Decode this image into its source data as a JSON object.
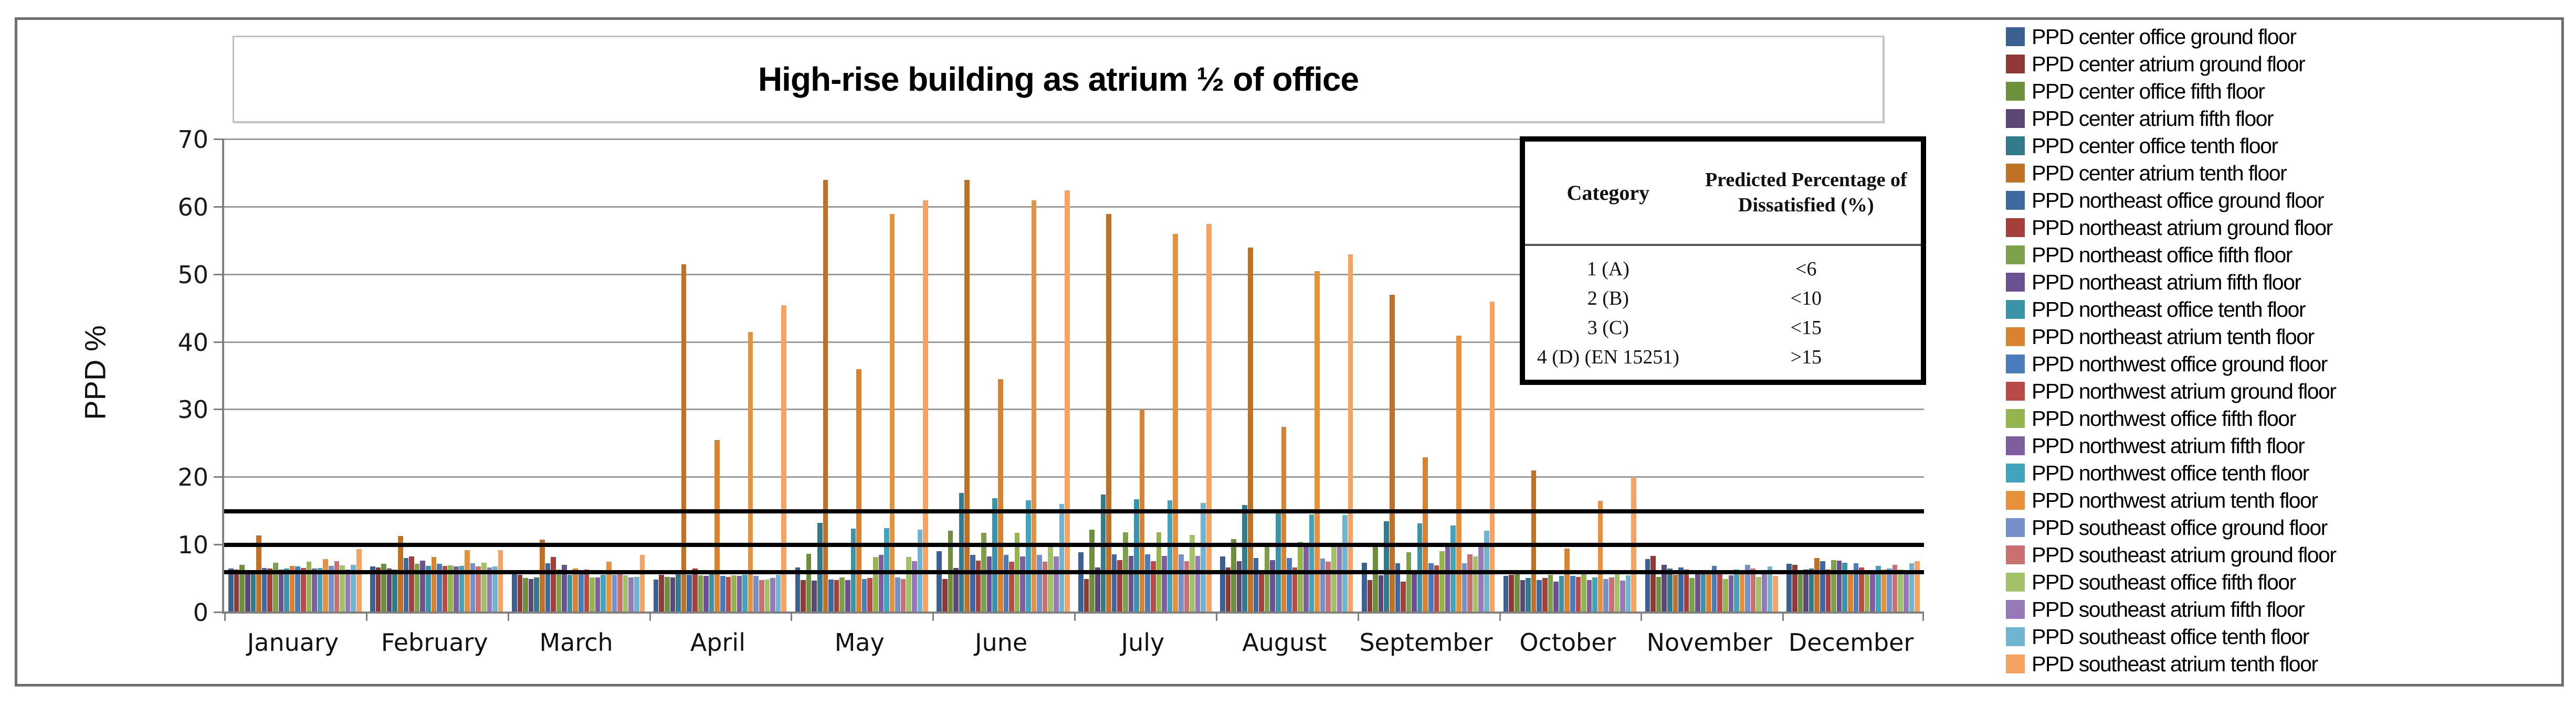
{
  "figure": {
    "title": "High-rise building as atrium ½ of office"
  },
  "y_axis": {
    "label": "PPD %",
    "ticks": [
      0,
      10,
      20,
      30,
      40,
      50,
      60,
      70
    ],
    "max": 70
  },
  "x_axis": {
    "months": [
      "January",
      "February",
      "March",
      "April",
      "May",
      "June",
      "July",
      "August",
      "September",
      "October",
      "November",
      "December"
    ]
  },
  "reference_lines": [
    {
      "value": 6,
      "color": "#000000"
    },
    {
      "value": 10,
      "color": "#000000"
    },
    {
      "value": 15,
      "color": "#000000"
    }
  ],
  "inset_table": {
    "header": {
      "category": "Category",
      "ppd": "Predicted Percentage of Dissatisfied (%)"
    },
    "rows": [
      {
        "category": "1 (A)",
        "ppd": "<6"
      },
      {
        "category": "2 (B)",
        "ppd": "<10"
      },
      {
        "category": "3 (C)",
        "ppd": "<15"
      },
      {
        "category": "4 (D) (EN 15251)",
        "ppd": ">15"
      }
    ]
  },
  "chart_data": {
    "type": "bar",
    "title": "High-rise building as atrium ½ of office",
    "xlabel": "",
    "ylabel": "PPD %",
    "ylim": [
      0,
      70
    ],
    "grid": true,
    "legend_position": "right",
    "categories": [
      "January",
      "February",
      "March",
      "April",
      "May",
      "June",
      "July",
      "August",
      "September",
      "October",
      "November",
      "December"
    ],
    "series": [
      {
        "name": "PPD center office ground floor",
        "color": "#3A6191",
        "values": [
          6.5,
          6.8,
          5.9,
          4.9,
          6.7,
          9.1,
          8.9,
          8.3,
          7.4,
          5.4,
          7.9,
          7.2
        ]
      },
      {
        "name": "PPD center atrium ground floor",
        "color": "#8F3A37",
        "values": [
          6.4,
          6.7,
          5.6,
          5.6,
          4.8,
          5.0,
          5.0,
          6.7,
          4.8,
          5.6,
          8.4,
          7.1
        ]
      },
      {
        "name": "PPD center office fifth floor",
        "color": "#6E8F3C",
        "values": [
          7.1,
          7.2,
          5.1,
          5.3,
          8.7,
          12.1,
          12.3,
          10.9,
          9.7,
          6.0,
          5.3,
          6.0
        ]
      },
      {
        "name": "PPD center atrium fifth floor",
        "color": "#5C4776",
        "values": [
          6.2,
          6.5,
          5.0,
          5.2,
          4.7,
          6.6,
          6.7,
          7.6,
          5.5,
          4.8,
          7.1,
          6.4
        ]
      },
      {
        "name": "PPD center office tenth floor",
        "color": "#347A8D",
        "values": [
          6.2,
          6.4,
          5.2,
          5.7,
          13.3,
          17.7,
          17.5,
          15.9,
          13.5,
          5.1,
          6.5,
          6.5
        ]
      },
      {
        "name": "PPD center atrium tenth floor",
        "color": "#BF7226",
        "values": [
          11.4,
          11.3,
          10.8,
          51.5,
          64.0,
          64.0,
          59.0,
          54.0,
          47.0,
          21.0,
          5.6,
          8.1
        ]
      },
      {
        "name": "PPD northeast office ground floor",
        "color": "#3E68A0",
        "values": [
          6.6,
          8.1,
          7.3,
          5.6,
          4.9,
          8.5,
          8.6,
          8.1,
          7.3,
          4.8,
          6.7,
          7.6
        ]
      },
      {
        "name": "PPD northeast atrium ground floor",
        "color": "#A53F3C",
        "values": [
          6.5,
          8.3,
          8.2,
          6.5,
          4.8,
          7.7,
          7.8,
          6.3,
          4.6,
          5.1,
          6.4,
          6.4
        ]
      },
      {
        "name": "PPD northeast office fifth floor",
        "color": "#7FA04A",
        "values": [
          7.4,
          7.2,
          6.4,
          5.5,
          5.2,
          11.8,
          11.9,
          10.2,
          8.9,
          5.6,
          5.1,
          7.8
        ]
      },
      {
        "name": "PPD northeast atrium fifth floor",
        "color": "#6A5191",
        "values": [
          6.4,
          7.7,
          7.1,
          5.4,
          4.8,
          8.3,
          8.4,
          7.8,
          6.2,
          4.6,
          6.3,
          7.7
        ]
      },
      {
        "name": "PPD northeast office tenth floor",
        "color": "#3A93A8",
        "values": [
          6.5,
          6.9,
          5.6,
          5.8,
          12.4,
          16.9,
          16.8,
          14.9,
          13.2,
          5.4,
          6.3,
          7.4
        ]
      },
      {
        "name": "PPD northeast atrium tenth floor",
        "color": "#D9822F",
        "values": [
          6.9,
          8.2,
          6.5,
          25.5,
          36.0,
          34.5,
          30.0,
          27.5,
          23.0,
          9.5,
          5.8,
          6.2
        ]
      },
      {
        "name": "PPD northwest office ground floor",
        "color": "#4A7BBA",
        "values": [
          6.8,
          7.2,
          5.9,
          5.4,
          5.0,
          8.5,
          8.6,
          8.1,
          7.3,
          5.4,
          6.9,
          7.3
        ]
      },
      {
        "name": "PPD northwest atrium ground floor",
        "color": "#B84A47",
        "values": [
          6.6,
          6.9,
          6.4,
          5.3,
          5.1,
          7.5,
          7.6,
          6.7,
          7.0,
          5.3,
          6.1,
          6.7
        ]
      },
      {
        "name": "PPD northwest office fifth floor",
        "color": "#94B54E",
        "values": [
          7.5,
          7.0,
          5.2,
          5.5,
          8.2,
          11.8,
          11.9,
          10.5,
          9.1,
          5.8,
          5.0,
          6.2
        ]
      },
      {
        "name": "PPD northwest atrium fifth floor",
        "color": "#7D5FA0",
        "values": [
          6.5,
          6.8,
          5.2,
          5.4,
          8.5,
          8.3,
          8.4,
          10.2,
          9.7,
          4.8,
          5.5,
          6.3
        ]
      },
      {
        "name": "PPD northwest office tenth floor",
        "color": "#42A3BC",
        "values": [
          6.6,
          6.9,
          5.6,
          5.6,
          12.5,
          16.6,
          16.6,
          14.5,
          12.9,
          5.2,
          6.4,
          6.9
        ]
      },
      {
        "name": "PPD northwest atrium tenth floor",
        "color": "#E8913C",
        "values": [
          7.9,
          9.2,
          7.5,
          41.5,
          59.0,
          61.0,
          56.0,
          50.5,
          41.0,
          16.5,
          5.8,
          6.4
        ]
      },
      {
        "name": "PPD southeast office ground floor",
        "color": "#7690C9",
        "values": [
          6.9,
          7.3,
          5.6,
          5.4,
          5.2,
          8.5,
          8.6,
          8.0,
          7.3,
          5.0,
          7.1,
          6.5
        ]
      },
      {
        "name": "PPD southeast atrium ground floor",
        "color": "#C97070",
        "values": [
          7.6,
          6.8,
          5.9,
          4.8,
          5.0,
          7.5,
          7.6,
          7.5,
          8.6,
          5.2,
          6.5,
          7.1
        ]
      },
      {
        "name": "PPD southeast office fifth floor",
        "color": "#A3C168",
        "values": [
          7.0,
          7.4,
          5.5,
          4.9,
          8.2,
          10.2,
          11.5,
          10.2,
          8.3,
          5.9,
          5.3,
          6.4
        ]
      },
      {
        "name": "PPD southeast atrium fifth floor",
        "color": "#9579B8",
        "values": [
          6.4,
          6.7,
          5.2,
          5.1,
          7.6,
          8.3,
          8.4,
          10.1,
          9.7,
          4.7,
          5.9,
          6.3
        ]
      },
      {
        "name": "PPD southeast office tenth floor",
        "color": "#6FB5D1",
        "values": [
          7.1,
          6.8,
          5.3,
          5.6,
          12.3,
          16.1,
          16.2,
          14.4,
          12.1,
          5.5,
          6.8,
          7.3
        ]
      },
      {
        "name": "PPD southeast atrium tenth floor",
        "color": "#F5A263",
        "values": [
          9.4,
          9.2,
          8.5,
          45.5,
          61.0,
          62.5,
          57.5,
          53.0,
          46.0,
          20.0,
          5.4,
          7.6
        ]
      }
    ]
  }
}
